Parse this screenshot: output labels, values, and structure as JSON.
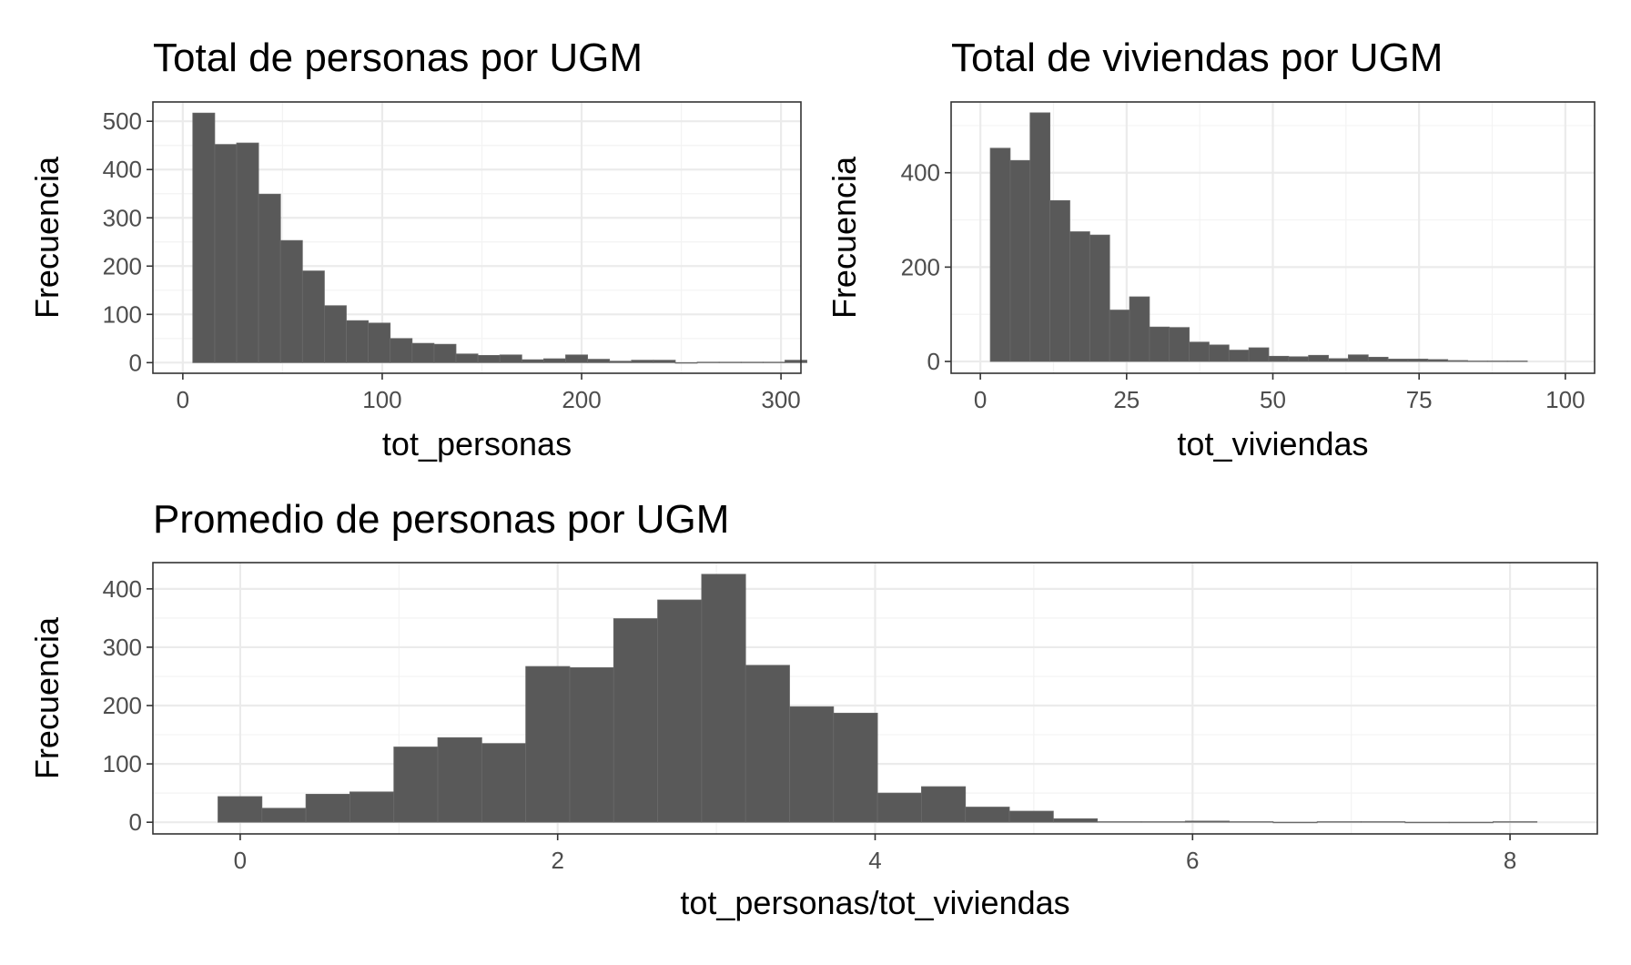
{
  "colors": {
    "bar": "#595959",
    "grid": "#ebebeb",
    "frame": "#333333"
  },
  "chart_data": [
    {
      "type": "bar",
      "title": "Total de personas por UGM",
      "xlabel": "tot_personas",
      "ylabel": "Frecuencia",
      "xlim": [
        -15,
        310
      ],
      "ylim": [
        -22,
        540
      ],
      "xticks": [
        0,
        100,
        200,
        300
      ],
      "yticks": [
        0,
        100,
        200,
        300,
        400,
        500
      ],
      "xminor": [
        50,
        150,
        250
      ],
      "yminor": [
        50,
        150,
        250,
        350,
        450
      ],
      "grid": true,
      "bin_start": 5,
      "bin_width": 11,
      "values": [
        517,
        452,
        455,
        349,
        253,
        190,
        118,
        87,
        82,
        50,
        40,
        38,
        18,
        15,
        16,
        6,
        8,
        16,
        7,
        3,
        5,
        5,
        0,
        1,
        1,
        1,
        1,
        5
      ]
    },
    {
      "type": "bar",
      "title": "Total de viviendas por UGM",
      "xlabel": "tot_viviendas",
      "ylabel": "Frecuencia",
      "xlim": [
        -5,
        105
      ],
      "ylim": [
        -25,
        550
      ],
      "xticks": [
        0,
        25,
        50,
        75,
        100
      ],
      "yticks": [
        0,
        200,
        400
      ],
      "xminor": [
        12.5,
        37.5,
        62.5,
        87.5
      ],
      "yminor": [
        100,
        300,
        500
      ],
      "grid": true,
      "bin_start": 1.7,
      "bin_width": 3.4,
      "values": [
        452,
        426,
        527,
        341,
        275,
        268,
        109,
        137,
        73,
        72,
        41,
        35,
        24,
        29,
        11,
        10,
        13,
        6,
        14,
        9,
        5,
        5,
        4,
        2,
        1,
        1,
        1
      ]
    },
    {
      "type": "bar",
      "title": "Promedio de personas por UGM",
      "xlabel": "tot_personas/tot_viviendas",
      "ylabel": "Frecuencia",
      "xlim": [
        -0.55,
        8.55
      ],
      "ylim": [
        -20,
        445
      ],
      "xticks": [
        0,
        2,
        4,
        6,
        8
      ],
      "yticks": [
        0,
        100,
        200,
        300,
        400
      ],
      "xminor": [
        1,
        3,
        5,
        7
      ],
      "yminor": [
        50,
        150,
        250,
        350
      ],
      "grid": true,
      "bin_start": -0.14,
      "bin_width": 0.277,
      "values": [
        44,
        24,
        48,
        52,
        129,
        145,
        135,
        267,
        265,
        349,
        381,
        425,
        269,
        198,
        187,
        50,
        61,
        26,
        19,
        6,
        1,
        1,
        2,
        1,
        0,
        1,
        1,
        0,
        0,
        1
      ]
    }
  ]
}
